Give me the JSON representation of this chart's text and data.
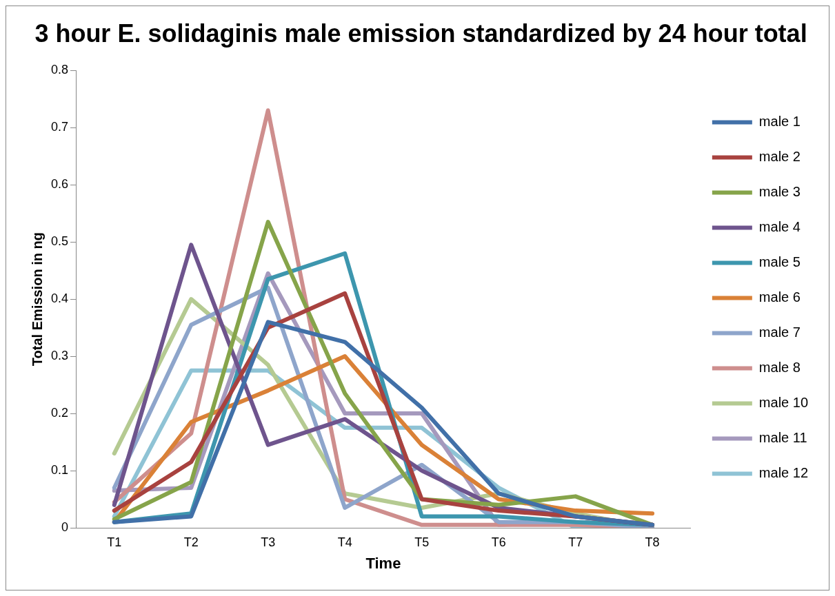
{
  "chart_data": {
    "type": "line",
    "title": "3 hour E. solidaginis male emission standardized by 24 hour total",
    "xlabel": "Time",
    "ylabel": "Total Emission in ng",
    "categories": [
      "T1",
      "T2",
      "T3",
      "T4",
      "T5",
      "T6",
      "T7",
      "T8"
    ],
    "ylim": [
      0,
      0.8
    ],
    "yticks": [
      0,
      0.1,
      0.2,
      0.3,
      0.4,
      0.5,
      0.6,
      0.7,
      0.8
    ],
    "grid": false,
    "legend": "right",
    "marker": "none",
    "line_style": "solid",
    "series": [
      {
        "name": "male 1",
        "color": "#4170a8",
        "values": [
          0.01,
          0.02,
          0.36,
          0.325,
          0.21,
          0.06,
          0.02,
          0.005
        ]
      },
      {
        "name": "male 2",
        "color": "#a8423f",
        "values": [
          0.03,
          0.115,
          0.35,
          0.41,
          0.05,
          0.03,
          0.02,
          0.005
        ]
      },
      {
        "name": "male 3",
        "color": "#86a44a",
        "values": [
          0.015,
          0.08,
          0.535,
          0.235,
          0.05,
          0.04,
          0.055,
          0.005
        ]
      },
      {
        "name": "male 4",
        "color": "#6e548d",
        "values": [
          0.04,
          0.495,
          0.145,
          0.19,
          0.1,
          0.035,
          0.02,
          0.005
        ]
      },
      {
        "name": "male 5",
        "color": "#3d96ae",
        "values": [
          0.01,
          0.025,
          0.435,
          0.48,
          0.02,
          0.02,
          0.01,
          0.005
        ]
      },
      {
        "name": "male 6",
        "color": "#da8137",
        "values": [
          0.01,
          0.185,
          0.24,
          0.3,
          0.145,
          0.05,
          0.03,
          0.025
        ]
      },
      {
        "name": "male 7",
        "color": "#8ea5cb",
        "values": [
          0.07,
          0.355,
          0.42,
          0.035,
          0.11,
          0.01,
          0.01,
          0
        ]
      },
      {
        "name": "male 8",
        "color": "#ce8e8d",
        "values": [
          0.045,
          0.165,
          0.73,
          0.05,
          0.005,
          0.005,
          0.005,
          0
        ]
      },
      {
        "name": "male 10",
        "color": "#b5ca92",
        "values": [
          0.13,
          0.4,
          0.285,
          0.06,
          0.035,
          0.06,
          0.025,
          0
        ]
      },
      {
        "name": "male 11",
        "color": "#a599bd",
        "values": [
          0.065,
          0.07,
          0.445,
          0.2,
          0.2,
          0.005,
          0.01,
          0.005
        ]
      },
      {
        "name": "male 12",
        "color": "#8fc3d5",
        "values": [
          0.02,
          0.275,
          0.275,
          0.175,
          0.175,
          0.07,
          0,
          0
        ]
      }
    ]
  }
}
